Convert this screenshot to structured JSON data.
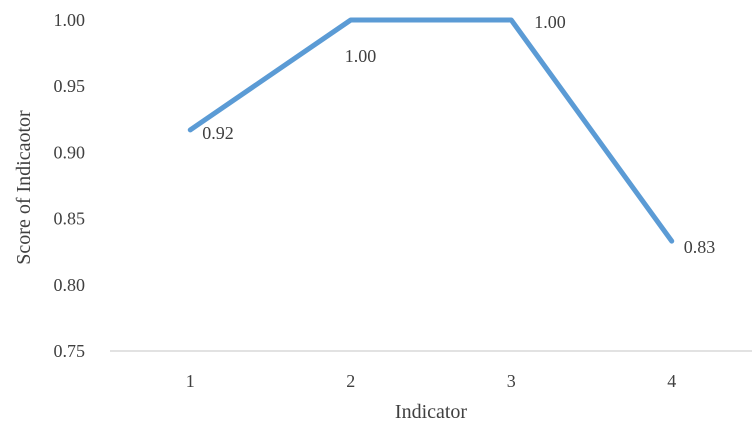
{
  "chart_data": {
    "type": "line",
    "xlabel": "Indicator",
    "ylabel": "Score of Indicaotor",
    "categories": [
      "1",
      "2",
      "3",
      "4"
    ],
    "series": [
      {
        "values": [
          0.917,
          1.0,
          1.0,
          0.833
        ],
        "data_labels": [
          "0.92",
          "1.00",
          "1.00",
          "0.83"
        ]
      }
    ],
    "ylim": [
      0.75,
      1.0
    ],
    "y_ticks": [
      "0.75",
      "0.80",
      "0.85",
      "0.90",
      "0.95",
      "1.00"
    ],
    "grid": false,
    "line_color": "#5B9BD5",
    "axis_color": "#D9D9D9"
  }
}
